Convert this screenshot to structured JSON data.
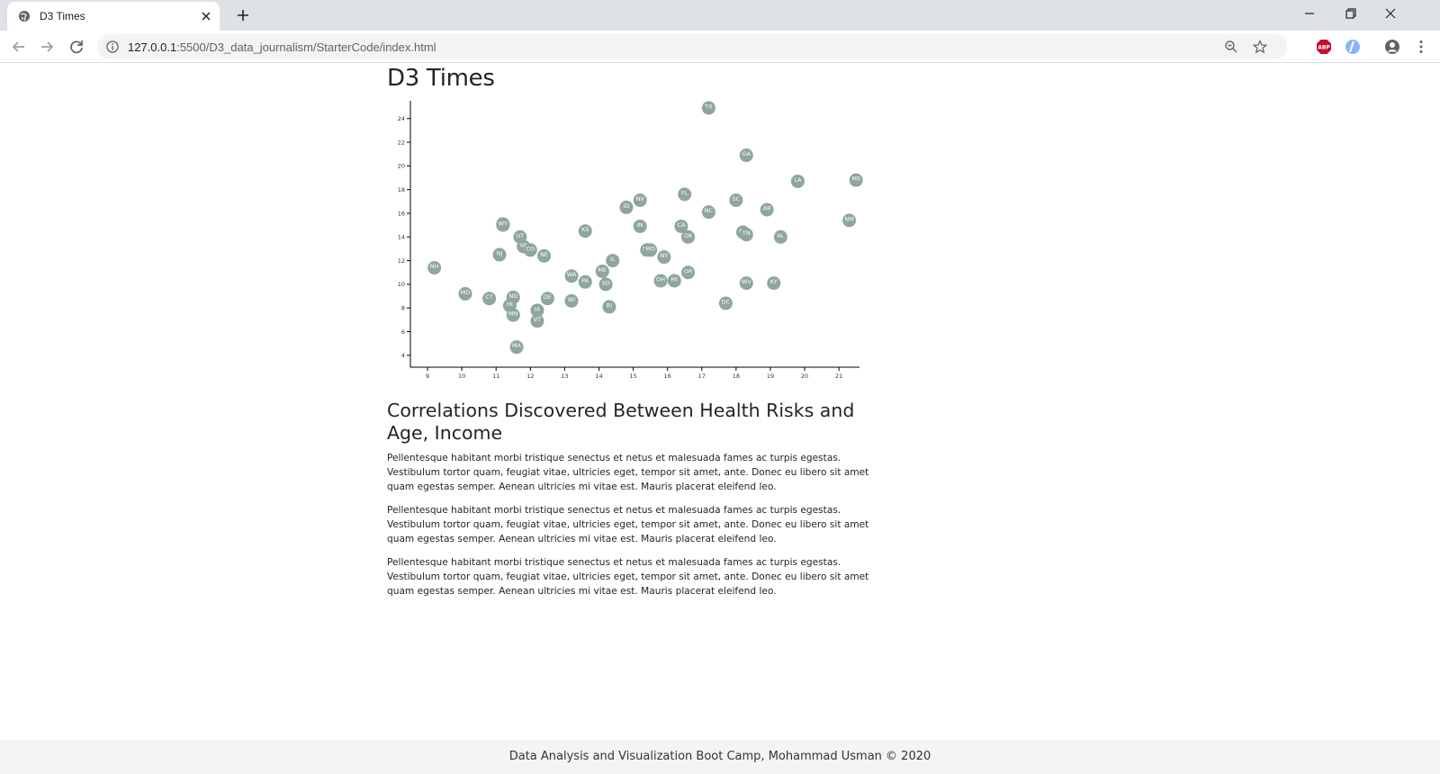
{
  "browser": {
    "tab_title": "D3 Times",
    "url_host": "127.0.0.1",
    "url_path": ":5500/D3_data_journalism/StarterCode/index.html",
    "icons": [
      "globe-icon",
      "close-icon",
      "plus-icon",
      "minimize-icon",
      "restore-icon",
      "window-close-icon",
      "back-arrow-icon",
      "forward-arrow-icon",
      "reload-icon",
      "info-icon",
      "zoom-icon",
      "star-icon",
      "adblock-icon",
      "extension-icon",
      "profile-icon",
      "more-icon"
    ]
  },
  "page": {
    "title": "D3 Times",
    "article_heading": "Correlations Discovered Between Health Risks and Age, Income",
    "paragraphs": [
      "Pellentesque habitant morbi tristique senectus et netus et malesuada fames ac turpis egestas. Vestibulum tortor quam, feugiat vitae, ultricies eget, tempor sit amet, ante. Donec eu libero sit amet quam egestas semper. Aenean ultricies mi vitae est. Mauris placerat eleifend leo.",
      "Pellentesque habitant morbi tristique senectus et netus et malesuada fames ac turpis egestas. Vestibulum tortor quam, feugiat vitae, ultricies eget, tempor sit amet, ante. Donec eu libero sit amet quam egestas semper. Aenean ultricies mi vitae est. Mauris placerat eleifend leo.",
      "Pellentesque habitant morbi tristique senectus et netus et malesuada fames ac turpis egestas. Vestibulum tortor quam, feugiat vitae, ultricies eget, tempor sit amet, ante. Donec eu libero sit amet quam egestas semper. Aenean ultricies mi vitae est. Mauris placerat eleifend leo."
    ],
    "footer": "Data Analysis and Visualization Boot Camp, Mohammad Usman © 2020"
  },
  "chart_data": {
    "type": "scatter",
    "title": "",
    "xlabel": "",
    "ylabel": "",
    "xlim": [
      8.5,
      21.6
    ],
    "ylim": [
      3,
      25.5
    ],
    "x_ticks": [
      9,
      10,
      11,
      12,
      13,
      14,
      15,
      16,
      17,
      18,
      19,
      20,
      21
    ],
    "y_ticks": [
      4,
      6,
      8,
      10,
      12,
      14,
      16,
      18,
      20,
      22,
      24
    ],
    "grid": false,
    "marker_color": "#8ea5a0",
    "label_color": "#ffffff",
    "points": [
      {
        "label": "TX",
        "x": 17.2,
        "y": 24.9
      },
      {
        "label": "GA",
        "x": 18.3,
        "y": 20.9
      },
      {
        "label": "MS",
        "x": 21.5,
        "y": 18.8
      },
      {
        "label": "LA",
        "x": 19.8,
        "y": 18.7
      },
      {
        "label": "FL",
        "x": 16.5,
        "y": 17.6
      },
      {
        "label": "NV",
        "x": 15.2,
        "y": 17.1
      },
      {
        "label": "SC",
        "x": 18.0,
        "y": 17.1
      },
      {
        "label": "ID",
        "x": 14.8,
        "y": 16.5
      },
      {
        "label": "AR",
        "x": 18.9,
        "y": 16.3
      },
      {
        "label": "NC",
        "x": 17.2,
        "y": 16.1
      },
      {
        "label": "NM",
        "x": 21.3,
        "y": 15.4
      },
      {
        "label": "AK",
        "x": 11.2,
        "y": 15.1
      },
      {
        "label": "WY",
        "x": 11.2,
        "y": 15.0
      },
      {
        "label": "IN",
        "x": 15.2,
        "y": 14.9
      },
      {
        "label": "CA",
        "x": 16.4,
        "y": 14.9
      },
      {
        "label": "KS",
        "x": 13.6,
        "y": 14.5
      },
      {
        "label": "AZ",
        "x": 18.2,
        "y": 14.4
      },
      {
        "label": "TN",
        "x": 18.3,
        "y": 14.2
      },
      {
        "label": "OK",
        "x": 16.6,
        "y": 14.0
      },
      {
        "label": "UT",
        "x": 11.7,
        "y": 14.0
      },
      {
        "label": "AL",
        "x": 19.3,
        "y": 14.0
      },
      {
        "label": "VA",
        "x": 11.8,
        "y": 13.2
      },
      {
        "label": "CO",
        "x": 12.0,
        "y": 12.9
      },
      {
        "label": "MT",
        "x": 15.4,
        "y": 12.9
      },
      {
        "label": "MO",
        "x": 15.5,
        "y": 12.9
      },
      {
        "label": "NJ",
        "x": 11.1,
        "y": 12.5
      },
      {
        "label": "NE",
        "x": 12.4,
        "y": 12.4
      },
      {
        "label": "NY",
        "x": 15.9,
        "y": 12.3
      },
      {
        "label": "IL",
        "x": 14.4,
        "y": 12.0
      },
      {
        "label": "NH",
        "x": 9.2,
        "y": 11.4
      },
      {
        "label": "ME",
        "x": 14.1,
        "y": 11.1
      },
      {
        "label": "OR",
        "x": 16.6,
        "y": 11.0
      },
      {
        "label": "WA",
        "x": 13.2,
        "y": 10.7
      },
      {
        "label": "MI",
        "x": 16.2,
        "y": 10.3
      },
      {
        "label": "OH",
        "x": 15.8,
        "y": 10.3
      },
      {
        "label": "PA",
        "x": 13.6,
        "y": 10.2
      },
      {
        "label": "WV",
        "x": 18.3,
        "y": 10.1
      },
      {
        "label": "KY",
        "x": 19.1,
        "y": 10.1
      },
      {
        "label": "SD",
        "x": 14.2,
        "y": 10.0
      },
      {
        "label": "MD",
        "x": 10.1,
        "y": 9.2
      },
      {
        "label": "ND",
        "x": 11.5,
        "y": 8.9
      },
      {
        "label": "CT",
        "x": 10.8,
        "y": 8.8
      },
      {
        "label": "DE",
        "x": 12.5,
        "y": 8.8
      },
      {
        "label": "WI",
        "x": 13.2,
        "y": 8.6
      },
      {
        "label": "DC",
        "x": 17.7,
        "y": 8.4
      },
      {
        "label": "HI",
        "x": 11.4,
        "y": 8.2
      },
      {
        "label": "RI",
        "x": 14.3,
        "y": 8.1
      },
      {
        "label": "IA",
        "x": 12.2,
        "y": 7.8
      },
      {
        "label": "MN",
        "x": 11.5,
        "y": 7.4
      },
      {
        "label": "VT",
        "x": 12.2,
        "y": 6.9
      },
      {
        "label": "MA",
        "x": 11.6,
        "y": 4.7
      }
    ]
  }
}
